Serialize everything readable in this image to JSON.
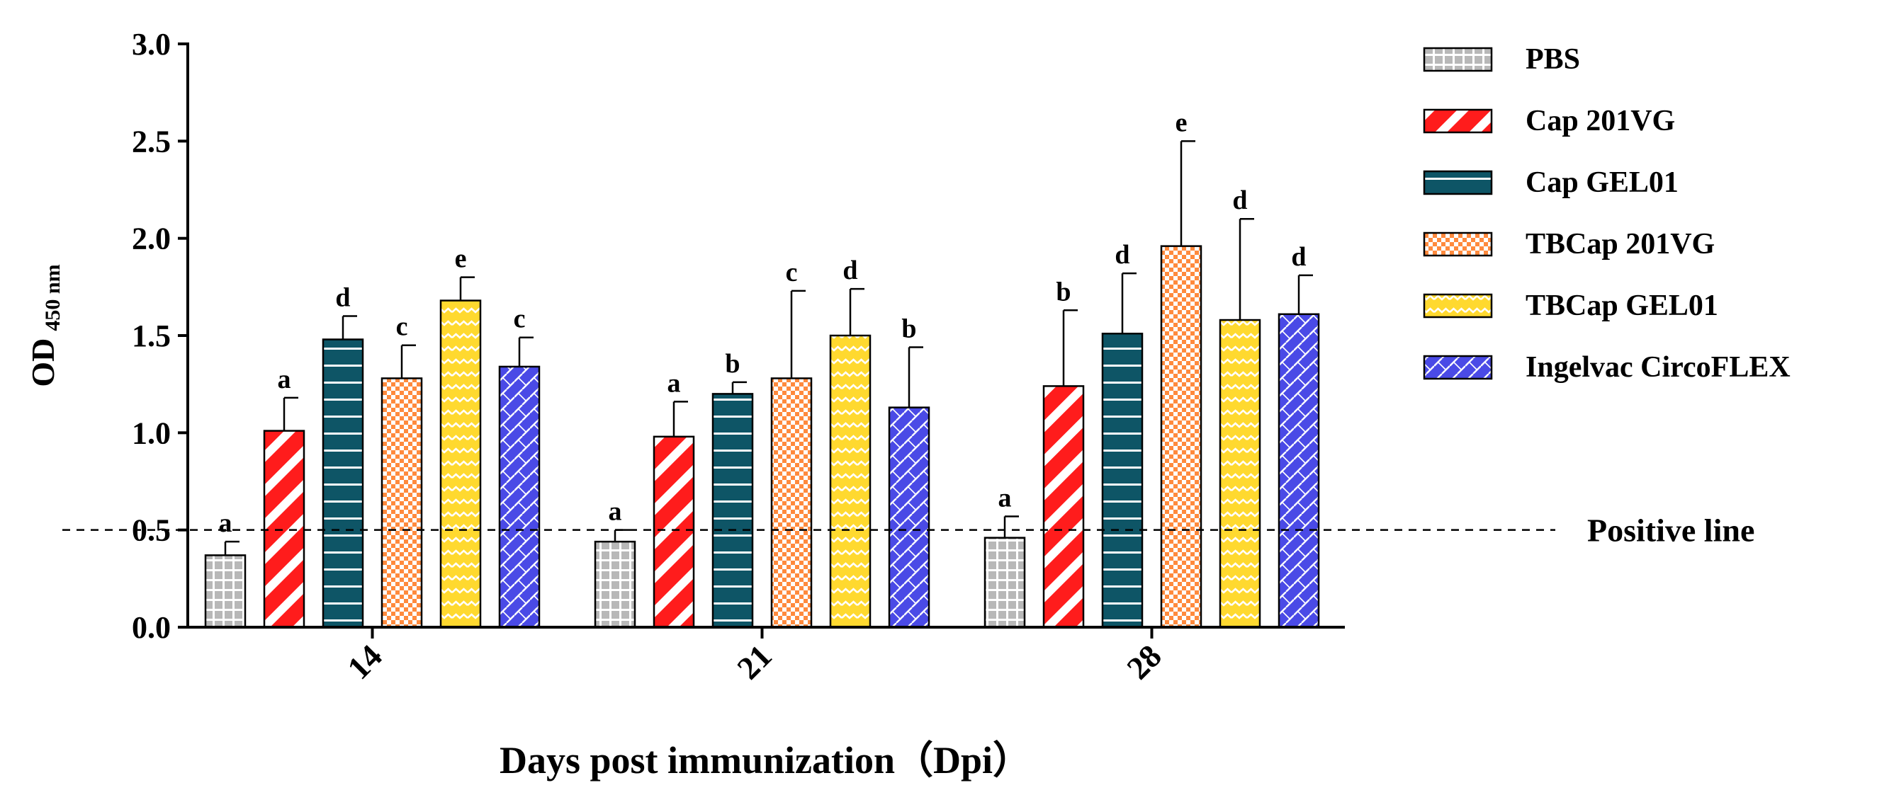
{
  "chart_data": {
    "type": "bar",
    "ylabel": "OD",
    "ylabel_sub": "450 nm",
    "xlabel": "Days post immunization（Dpi）",
    "categories": [
      "14",
      "21",
      "28"
    ],
    "ylim": [
      0,
      3.0
    ],
    "yticks": [
      "0.0",
      "0.5",
      "1.0",
      "1.5",
      "2.0",
      "2.5",
      "3.0"
    ],
    "ytick_values": [
      0,
      0.5,
      1.0,
      1.5,
      2.0,
      2.5,
      3.0
    ],
    "series": [
      {
        "name": "PBS",
        "color": "#b8b8b8",
        "pattern": "grid",
        "values": [
          0.37,
          0.44,
          0.46
        ],
        "errors": [
          0.07,
          0.06,
          0.11
        ],
        "letters": [
          "a",
          "a",
          "a"
        ]
      },
      {
        "name": "Cap 201VG",
        "color": "#ff1c1c",
        "pattern": "diag",
        "values": [
          1.01,
          0.98,
          1.24
        ],
        "errors": [
          0.17,
          0.18,
          0.39
        ],
        "letters": [
          "a",
          "a",
          "b"
        ]
      },
      {
        "name": "Cap GEL01",
        "color": "#0e5566",
        "pattern": "hlines",
        "values": [
          1.48,
          1.2,
          1.51
        ],
        "errors": [
          0.12,
          0.06,
          0.31
        ],
        "letters": [
          "d",
          "b",
          "d"
        ]
      },
      {
        "name": "TBCap 201VG",
        "color": "#ff8a3d",
        "pattern": "check",
        "values": [
          1.28,
          1.28,
          1.96
        ],
        "errors": [
          0.17,
          0.45,
          0.54
        ],
        "letters": [
          "c",
          "c",
          "e"
        ]
      },
      {
        "name": "TBCap GEL01",
        "color": "#ffd92f",
        "pattern": "zigzag",
        "values": [
          1.68,
          1.5,
          1.58
        ],
        "errors": [
          0.12,
          0.24,
          0.52
        ],
        "letters": [
          "e",
          "d",
          "d"
        ]
      },
      {
        "name": "Ingelvac CircoFLEX",
        "color": "#4a4ae6",
        "pattern": "weave",
        "values": [
          1.34,
          1.13,
          1.61
        ],
        "errors": [
          0.15,
          0.31,
          0.2
        ],
        "letters": [
          "c",
          "b",
          "d"
        ]
      }
    ],
    "reference_line": {
      "value": 0.5,
      "label": "Positive line"
    },
    "legend_position": "right"
  }
}
